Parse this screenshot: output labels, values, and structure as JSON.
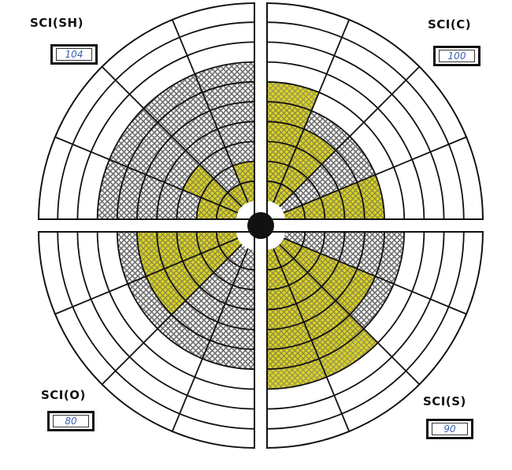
{
  "quadrants": {
    "sh": {
      "label": "SCI(SH)",
      "score": "104",
      "shaded_rings": 7,
      "steps": [
        2,
        1,
        3,
        2
      ]
    },
    "c": {
      "label": "SCI(C)",
      "score": "100",
      "shaded_rings": 5,
      "steps": [
        5,
        0,
        4,
        6
      ]
    },
    "o": {
      "label": "SCI(O)",
      "score": "80",
      "shaded_rings": 6,
      "steps": [
        5,
        5,
        0,
        0
      ]
    },
    "s": {
      "label": "SCI(S)",
      "score": "90",
      "shaded_rings": 6,
      "steps": [
        7,
        7,
        5,
        0
      ]
    }
  },
  "colors": {
    "ink": "#111111",
    "shading": "#d9cf12",
    "highlight": "#ffe000",
    "hatch": "#7a7a7a"
  }
}
